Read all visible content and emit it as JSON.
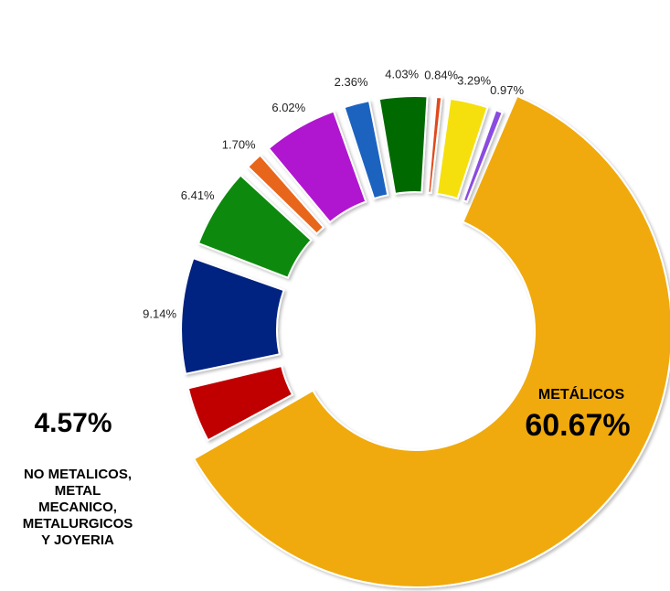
{
  "chart_data": {
    "type": "pie",
    "variant": "donut-exploded",
    "title": "",
    "slices": [
      {
        "label": "",
        "value": 60.67,
        "value_label": "60.67%",
        "color": "#F0AA10"
      },
      {
        "label": "NO METALICOS, METAL MECANICO, METALURGICOS Y JOYERIA",
        "value": 4.57,
        "value_label": "4.57%",
        "color": "#C00000"
      },
      {
        "label": "",
        "value": 9.14,
        "value_label": "9.14%",
        "color": "#002080"
      },
      {
        "label": "",
        "value": 6.41,
        "value_label": "6.41%",
        "color": "#0A8A0A"
      },
      {
        "label": "",
        "value": 1.7,
        "value_label": "1.70%",
        "color": "#E8661A"
      },
      {
        "label": "",
        "value": 6.02,
        "value_label": "6.02%",
        "color": "#B014D0"
      },
      {
        "label": "",
        "value": 2.36,
        "value_label": "2.36%",
        "color": "#1C64C0"
      },
      {
        "label": "",
        "value": 4.03,
        "value_label": "4.03%",
        "color": "#006A00"
      },
      {
        "label": "",
        "value": 0.84,
        "value_label": "0.84%",
        "color": "#E04A1A"
      },
      {
        "label": "",
        "value": 3.29,
        "value_label": "3.29%",
        "color": "#F5E010"
      },
      {
        "label": "",
        "value": 0.97,
        "value_label": "0.97%",
        "color": "#8A4CE0"
      }
    ],
    "main_label": {
      "name": "METÁLICOS",
      "value_label": "60.67%"
    },
    "callout": {
      "value_label": "4.57%",
      "lines": [
        "NO METALICOS,",
        "METAL",
        "MECANICO,",
        "METALURGICOS",
        "Y JOYERIA"
      ]
    }
  }
}
